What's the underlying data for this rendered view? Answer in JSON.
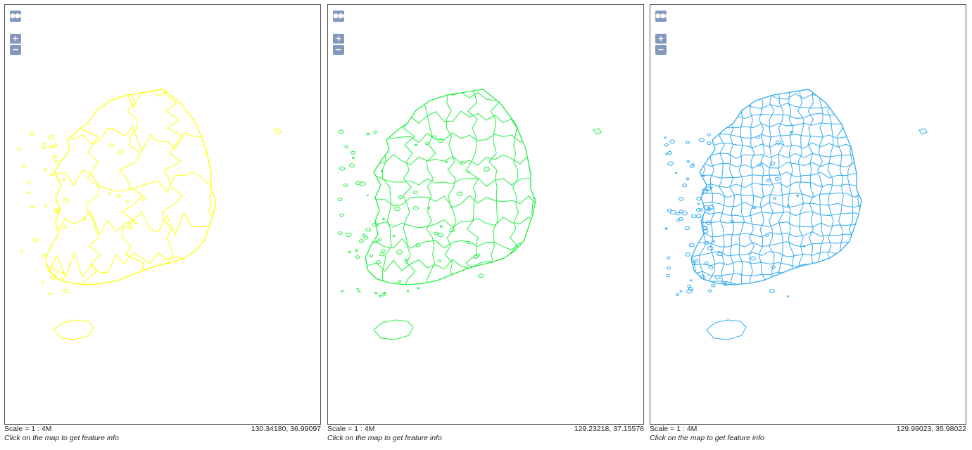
{
  "panels": [
    {
      "id": "provinces",
      "color": "#ffff00",
      "scale_text": "Scale = 1 : 4M",
      "coordinates": "130.34180, 36.99097",
      "hint": "Click on the map to get feature info",
      "layer": "province-boundaries"
    },
    {
      "id": "districts",
      "color": "#22ee44",
      "scale_text": "Scale = 1 : 4M",
      "coordinates": "129.23218, 37.15576",
      "hint": "Click on the map to get feature info",
      "layer": "district-boundaries"
    },
    {
      "id": "towns",
      "color": "#33aaee",
      "scale_text": "Scale = 1 : 4M",
      "coordinates": "129.99023, 35.98022",
      "hint": "Click on the map to get feature info",
      "layer": "town-boundaries"
    }
  ],
  "controls": {
    "menu_icon": "menu-dots-icon",
    "zoom_in_label": "+",
    "zoom_out_label": "−"
  }
}
